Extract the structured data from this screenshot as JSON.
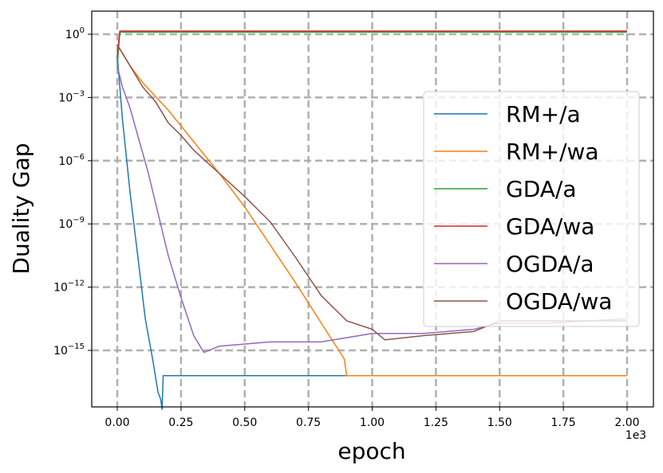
{
  "chart_data": {
    "type": "line",
    "title": "",
    "xlabel": "epoch",
    "ylabel": "Duality Gap",
    "x_scale_label": "1e3",
    "xlim": [
      -0.1,
      2.1
    ],
    "ylim_log10": [
      -17.8,
      1.2
    ],
    "y_scale": "log",
    "grid": true,
    "legend_position": "right",
    "x_ticks": [
      "0.00",
      "0.25",
      "0.50",
      "0.75",
      "1.00",
      "1.25",
      "1.50",
      "1.75",
      "2.00"
    ],
    "y_ticks": [
      {
        "base": "10",
        "exp": "0",
        "value": 0
      },
      {
        "base": "10",
        "exp": "−3",
        "value": -3
      },
      {
        "base": "10",
        "exp": "−6",
        "value": -6
      },
      {
        "base": "10",
        "exp": "−9",
        "value": -9
      },
      {
        "base": "10",
        "exp": "−12",
        "value": -12
      },
      {
        "base": "10",
        "exp": "−15",
        "value": -15
      }
    ],
    "series": [
      {
        "name": "RM+/a",
        "color": "#1f77b4",
        "x": [
          0,
          0.02,
          0.05,
          0.08,
          0.11,
          0.14,
          0.16,
          0.17,
          0.176,
          0.18,
          2.0
        ],
        "log10_y": [
          -1,
          -4,
          -7.5,
          -10.5,
          -13.5,
          -15.5,
          -17,
          -17.3,
          -17.8,
          -16.2,
          -16.2
        ]
      },
      {
        "name": "RM+/wa",
        "color": "#ff7f0e",
        "x": [
          0,
          0.05,
          0.1,
          0.2,
          0.3,
          0.4,
          0.5,
          0.6,
          0.7,
          0.8,
          0.89,
          0.9,
          2.0
        ],
        "log10_y": [
          -0.5,
          -1.5,
          -2.3,
          -3.6,
          -5.1,
          -6.6,
          -8.2,
          -10.0,
          -11.8,
          -13.7,
          -15.4,
          -16.2,
          -16.2
        ]
      },
      {
        "name": "GDA/a",
        "color": "#2ca02c",
        "x": [
          0,
          0.01,
          2.0
        ],
        "log10_y": [
          -1.5,
          0.1,
          0.1
        ]
      },
      {
        "name": "GDA/wa",
        "color": "#d62728",
        "x": [
          0,
          0.01,
          2.0
        ],
        "log10_y": [
          -1.0,
          0.15,
          0.15
        ]
      },
      {
        "name": "OGDA/a",
        "color": "#9467bd",
        "x": [
          0,
          0.02,
          0.05,
          0.08,
          0.12,
          0.16,
          0.2,
          0.25,
          0.3,
          0.34,
          0.4,
          0.6,
          0.8,
          1.0,
          1.2,
          1.4,
          1.5,
          1.7,
          2.0
        ],
        "log10_y": [
          -1.5,
          -2.5,
          -3.5,
          -4.8,
          -6.5,
          -8.5,
          -10.5,
          -12.5,
          -14.3,
          -15.1,
          -14.8,
          -14.6,
          -14.6,
          -14.2,
          -14.2,
          -14.0,
          -13.7,
          -13.7,
          -13.5
        ]
      },
      {
        "name": "OGDA/wa",
        "color": "#8c564b",
        "x": [
          0,
          0.05,
          0.1,
          0.15,
          0.2,
          0.25,
          0.3,
          0.4,
          0.5,
          0.6,
          0.7,
          0.8,
          0.9,
          1.0,
          1.05,
          1.2,
          1.4,
          1.5,
          1.7,
          2.0
        ],
        "log10_y": [
          -0.5,
          -1.5,
          -2.5,
          -3.2,
          -4.2,
          -4.8,
          -5.5,
          -6.6,
          -7.7,
          -8.9,
          -10.6,
          -12.4,
          -13.6,
          -14.0,
          -14.5,
          -14.3,
          -14.1,
          -13.6,
          -13.6,
          -13.6
        ]
      }
    ]
  }
}
